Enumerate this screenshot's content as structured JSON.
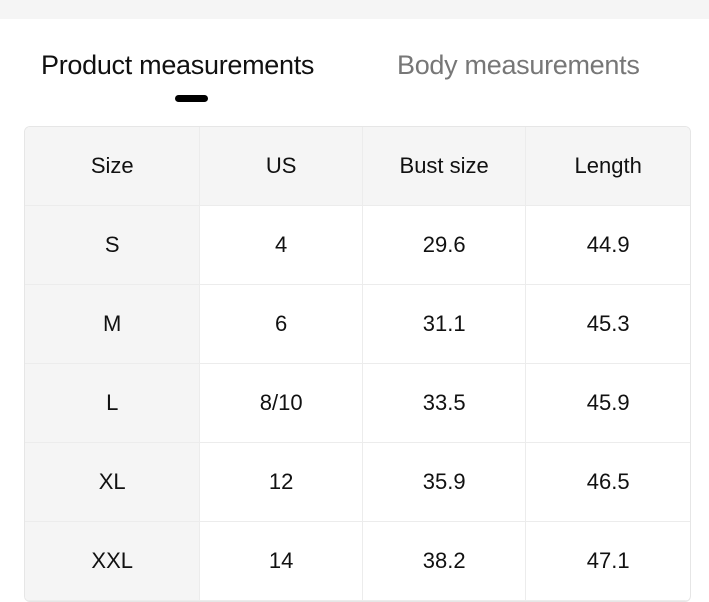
{
  "tabs": [
    {
      "label": "Product measurements",
      "active": true
    },
    {
      "label": "Body measurements",
      "active": false
    }
  ],
  "table": {
    "headers": [
      "Size",
      "US",
      "Bust size",
      "Length"
    ],
    "rows": [
      [
        "S",
        "4",
        "29.6",
        "44.9"
      ],
      [
        "M",
        "6",
        "31.1",
        "45.3"
      ],
      [
        "L",
        "8/10",
        "33.5",
        "45.9"
      ],
      [
        "XL",
        "12",
        "35.9",
        "46.5"
      ],
      [
        "XXL",
        "14",
        "38.2",
        "47.1"
      ]
    ]
  }
}
